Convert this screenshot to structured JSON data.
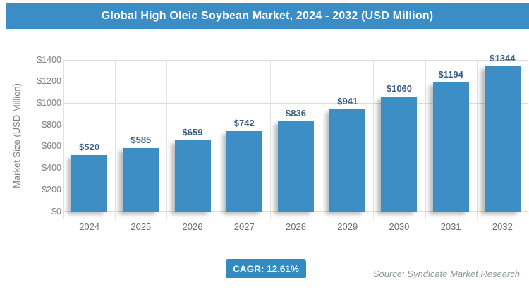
{
  "header": {
    "title": "Global High Oleic Soybean Market, 2024 - 2032 (USD Million)"
  },
  "chart_data": {
    "type": "bar",
    "title": "Global High Oleic Soybean Market, 2024 - 2032 (USD Million)",
    "categories": [
      "2024",
      "2025",
      "2026",
      "2027",
      "2028",
      "2029",
      "2030",
      "2031",
      "2032"
    ],
    "values": [
      520,
      585,
      659,
      742,
      836,
      941,
      1060,
      1194,
      1344
    ],
    "value_labels": [
      "$520",
      "$585",
      "$659",
      "$742",
      "$836",
      "$941",
      "$1060",
      "$1194",
      "$1344"
    ],
    "xlabel": "",
    "ylabel": "Market Size (USD Million)",
    "ylim": [
      0,
      1400
    ],
    "ytick_step": 200,
    "ytick_labels": [
      "$0",
      "$200",
      "$400",
      "$600",
      "$800",
      "$1000",
      "$1200",
      "$1400"
    ],
    "grid": true,
    "legend": false,
    "bar_color": "#3E8EC6",
    "value_label_color": "#3C5E85"
  },
  "footer": {
    "cagr_label": "CAGR: 12.61%",
    "source": "Source: Syndicate Market Research"
  },
  "colors": {
    "banner": "#3A8DC5",
    "badge": "#338BC4",
    "axis_text": "#808080",
    "x_tick_text": "#6E6E6E",
    "gridline": "#DCDCDC",
    "source_text": "#8C959B"
  }
}
